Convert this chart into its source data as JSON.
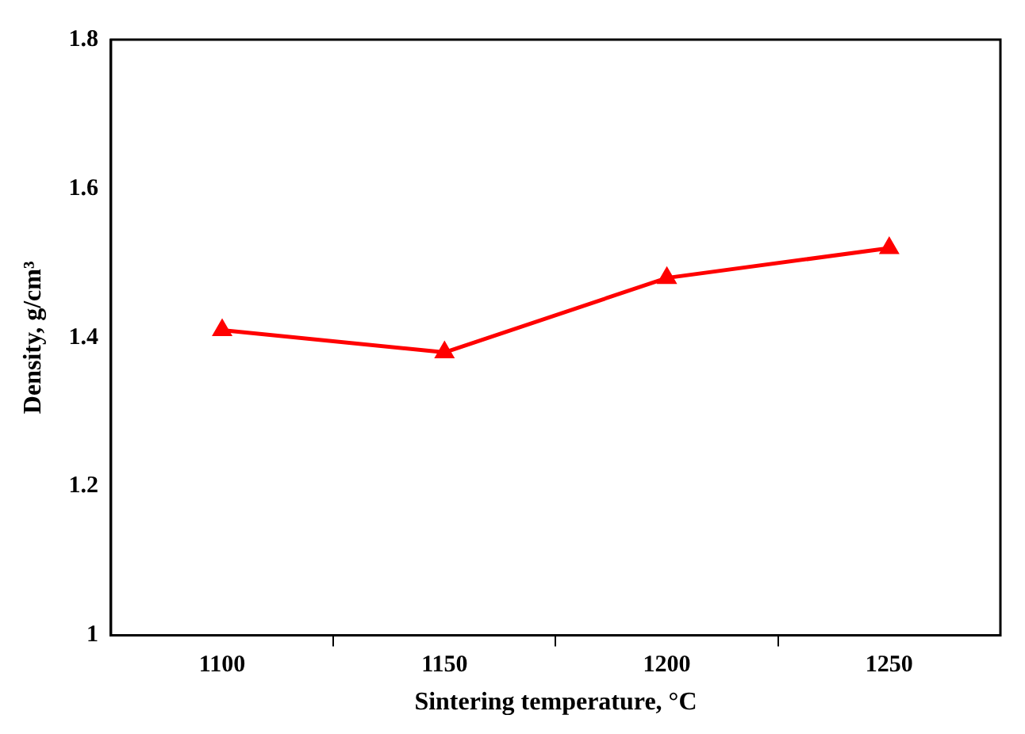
{
  "chart_data": {
    "type": "line",
    "xlabel": "Sintering temperature, °C",
    "ylabel": "Density, g/cm³",
    "x": [
      1100,
      1150,
      1200,
      1250
    ],
    "series": [
      {
        "color": "#ff0000",
        "values": [
          1.41,
          1.38,
          1.48,
          1.52
        ]
      }
    ],
    "xlim": [
      1075,
      1275
    ],
    "xticks": [
      1100,
      {
        "value": 1125,
        "label": null
      },
      1150,
      {
        "value": 1175,
        "label": null
      },
      1200,
      {
        "value": 1225,
        "label": null
      },
      1250
    ],
    "ylim": [
      1,
      1.8
    ],
    "yticks": [
      1,
      1.2,
      1.4,
      1.6,
      1.8
    ],
    "grid": false,
    "legend": false,
    "marker": "triangle",
    "line_style": "solid"
  }
}
